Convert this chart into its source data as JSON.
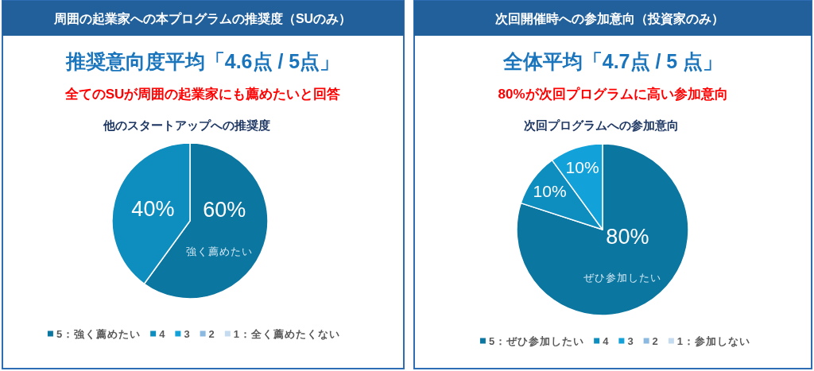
{
  "chart_data": [
    {
      "type": "pie",
      "title": "周囲の起業家への本プログラムの推奨度（SUのみ）",
      "subtitle": "推奨意向度平均「4.6点 / 5点」",
      "annotations": [
        "全てのSUが周囲の起業家にも薦めたいと回答",
        "他のスタートアップへの推奨度",
        "強く薦めたい"
      ],
      "categories": [
        "5：強く薦めたい",
        "4",
        "3",
        "2",
        "1：全く薦めたくない"
      ],
      "values": [
        60,
        40,
        0,
        0,
        0
      ],
      "colors": [
        "#0b76a0",
        "#0e8dbf",
        "#12a1d9",
        "#8cb9e0",
        "#c5dbf0"
      ],
      "value_labels": [
        "60%",
        "40%",
        null,
        null,
        null
      ],
      "legend": "bottom"
    },
    {
      "type": "pie",
      "title": "次回開催時への参加意向（投資家のみ）",
      "subtitle": "全体平均「4.7点 / 5 点」",
      "annotations": [
        "80%が次回プログラムに高い参加意向",
        "次回プログラムへの参加意向",
        "ぜひ参加したい"
      ],
      "categories": [
        "5：ぜひ参加したい",
        "4",
        "3",
        "2",
        "1：参加しない"
      ],
      "values": [
        80,
        10,
        10,
        0,
        0
      ],
      "colors": [
        "#0b76a0",
        "#0e8dbf",
        "#12a1d9",
        "#8cb9e0",
        "#c5dbf0"
      ],
      "value_labels": [
        "80%",
        "10%",
        "10%",
        null,
        null
      ],
      "legend": "bottom"
    }
  ]
}
